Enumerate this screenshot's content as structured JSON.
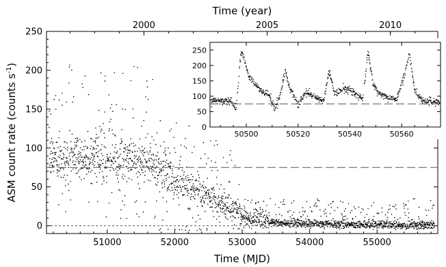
{
  "chart_data": [
    {
      "type": "scatter",
      "title": "",
      "xlabel": "Time (MJD)",
      "ylabel": "ASM count rate (counts s",
      "ylabel_sup": "-1",
      "ylabel_end": ")",
      "top_axis_label": "Time (year)",
      "xlim": [
        50100,
        55900
      ],
      "ylim": [
        -10,
        250
      ],
      "x_ticks": [
        51000,
        52000,
        53000,
        54000,
        55000
      ],
      "y_ticks": [
        0,
        50,
        100,
        150,
        200,
        250
      ],
      "top_ticks": [
        {
          "label": "2000",
          "mjd": 51544
        },
        {
          "label": "2005",
          "mjd": 53371
        },
        {
          "label": "2010",
          "mjd": 55197
        }
      ],
      "reference_lines": [
        {
          "y": 75,
          "style": "long-dash"
        },
        {
          "y": 0,
          "style": "short-dash"
        }
      ],
      "trend": [
        {
          "x": 50140,
          "y": 88
        },
        {
          "x": 50500,
          "y": 90
        },
        {
          "x": 51000,
          "y": 88
        },
        {
          "x": 51500,
          "y": 85
        },
        {
          "x": 51700,
          "y": 78
        },
        {
          "x": 52000,
          "y": 60
        },
        {
          "x": 52300,
          "y": 45
        },
        {
          "x": 52600,
          "y": 32
        },
        {
          "x": 52900,
          "y": 18
        },
        {
          "x": 53100,
          "y": 9
        },
        {
          "x": 53500,
          "y": 4
        },
        {
          "x": 54000,
          "y": 3
        },
        {
          "x": 54500,
          "y": 2
        },
        {
          "x": 55000,
          "y": 1
        },
        {
          "x": 55850,
          "y": 1
        }
      ],
      "grid": false,
      "legend": "none"
    },
    {
      "type": "scatter",
      "title": "",
      "inset": true,
      "xlim": [
        50486,
        50575
      ],
      "ylim": [
        0,
        275
      ],
      "x_ticks": [
        50500,
        50520,
        50540,
        50560
      ],
      "y_ticks": [
        0,
        50,
        100,
        150,
        200,
        250
      ],
      "reference_lines": [
        {
          "y": 75,
          "style": "long-dash"
        }
      ],
      "profile": [
        {
          "x": 50486,
          "y": 85
        },
        {
          "x": 50494,
          "y": 85
        },
        {
          "x": 50496,
          "y": 60
        },
        {
          "x": 50498,
          "y": 250
        },
        {
          "x": 50501,
          "y": 165
        },
        {
          "x": 50505,
          "y": 125
        },
        {
          "x": 50509,
          "y": 100
        },
        {
          "x": 50511,
          "y": 55
        },
        {
          "x": 50513,
          "y": 100
        },
        {
          "x": 50515,
          "y": 185
        },
        {
          "x": 50517,
          "y": 120
        },
        {
          "x": 50520,
          "y": 75
        },
        {
          "x": 50523,
          "y": 115
        },
        {
          "x": 50528,
          "y": 90
        },
        {
          "x": 50530,
          "y": 85
        },
        {
          "x": 50532,
          "y": 185
        },
        {
          "x": 50534,
          "y": 110
        },
        {
          "x": 50538,
          "y": 125
        },
        {
          "x": 50542,
          "y": 110
        },
        {
          "x": 50545,
          "y": 90
        },
        {
          "x": 50547,
          "y": 245
        },
        {
          "x": 50549,
          "y": 140
        },
        {
          "x": 50551,
          "y": 110
        },
        {
          "x": 50555,
          "y": 95
        },
        {
          "x": 50558,
          "y": 90
        },
        {
          "x": 50561,
          "y": 165
        },
        {
          "x": 50563,
          "y": 240
        },
        {
          "x": 50565,
          "y": 120
        },
        {
          "x": 50568,
          "y": 85
        },
        {
          "x": 50575,
          "y": 80
        }
      ]
    }
  ]
}
